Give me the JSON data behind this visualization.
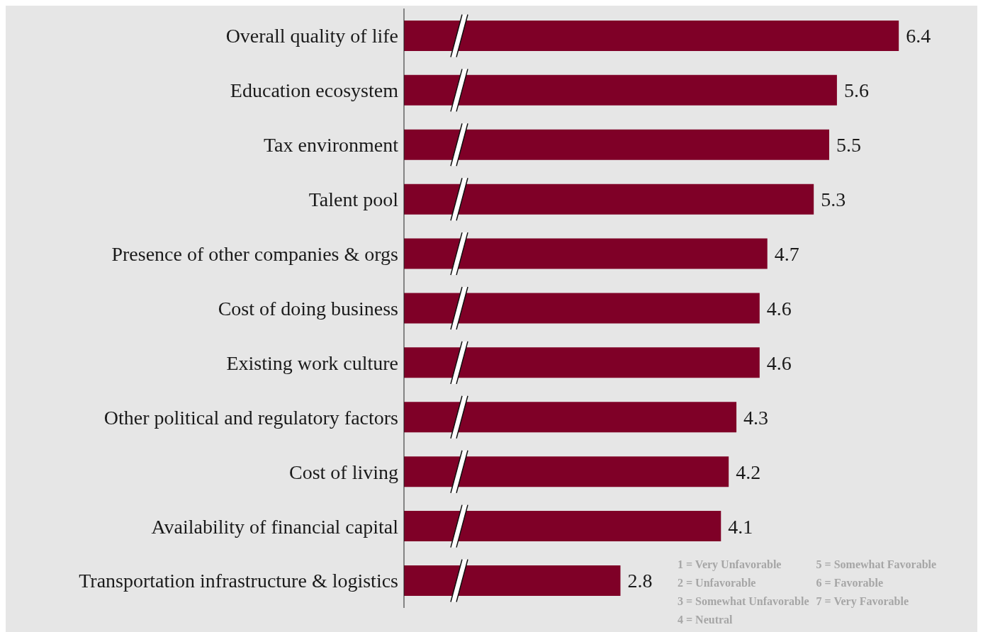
{
  "chart_data": {
    "type": "bar",
    "orientation": "horizontal",
    "categories": [
      "Overall quality of life",
      "Education ecosystem",
      "Tax environment",
      "Talent pool",
      "Presence of other companies & orgs",
      "Cost of doing business",
      "Existing work culture",
      "Other political and regulatory factors",
      "Cost of living",
      "Availability of financial capital",
      "Transportation infrastructure & logistics"
    ],
    "values": [
      6.4,
      5.6,
      5.5,
      5.3,
      4.7,
      4.6,
      4.6,
      4.3,
      4.2,
      4.1,
      2.8
    ],
    "color": "#7f0027",
    "data_labels": true,
    "tick_labels": "y",
    "grid": false,
    "legend": false,
    "annotations": [
      "1 = Very Unfavorable",
      "2 = Unfavorable",
      "3 = Somewhat Unfavorable",
      "4 = Neutral",
      "5 = Somewhat Favorable",
      "6 = Favorable",
      "7 = Very Favorable"
    ]
  }
}
